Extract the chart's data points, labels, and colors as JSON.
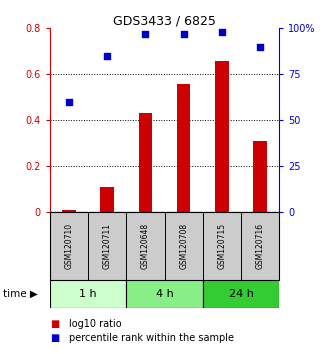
{
  "title": "GDS3433 / 6825",
  "samples": [
    "GSM120710",
    "GSM120711",
    "GSM120648",
    "GSM120708",
    "GSM120715",
    "GSM120716"
  ],
  "log10_ratio": [
    0.012,
    0.11,
    0.43,
    0.56,
    0.66,
    0.31
  ],
  "percentile_rank": [
    60,
    85,
    97,
    97,
    98,
    90
  ],
  "bar_color": "#cc0000",
  "dot_color": "#0000cc",
  "ylim_left": [
    0,
    0.8
  ],
  "ylim_right": [
    0,
    100
  ],
  "yticks_left": [
    0,
    0.2,
    0.4,
    0.6,
    0.8
  ],
  "yticks_right": [
    0,
    25,
    50,
    75,
    100
  ],
  "ytick_labels_right": [
    "0",
    "25",
    "50",
    "75",
    "100%"
  ],
  "grid_values": [
    0.2,
    0.4,
    0.6
  ],
  "time_groups": [
    {
      "label": "1 h",
      "indices": [
        0,
        1
      ],
      "color": "#ccffcc"
    },
    {
      "label": "4 h",
      "indices": [
        2,
        3
      ],
      "color": "#88ee88"
    },
    {
      "label": "24 h",
      "indices": [
        4,
        5
      ],
      "color": "#33cc33"
    }
  ],
  "legend_bar_label": "log10 ratio",
  "legend_dot_label": "percentile rank within the sample",
  "time_label": "time",
  "left_axis_color": "#cc0000",
  "right_axis_color": "#0000cc",
  "bg_plot": "#ffffff",
  "bg_sample_box": "#cccccc",
  "bar_width": 0.35
}
